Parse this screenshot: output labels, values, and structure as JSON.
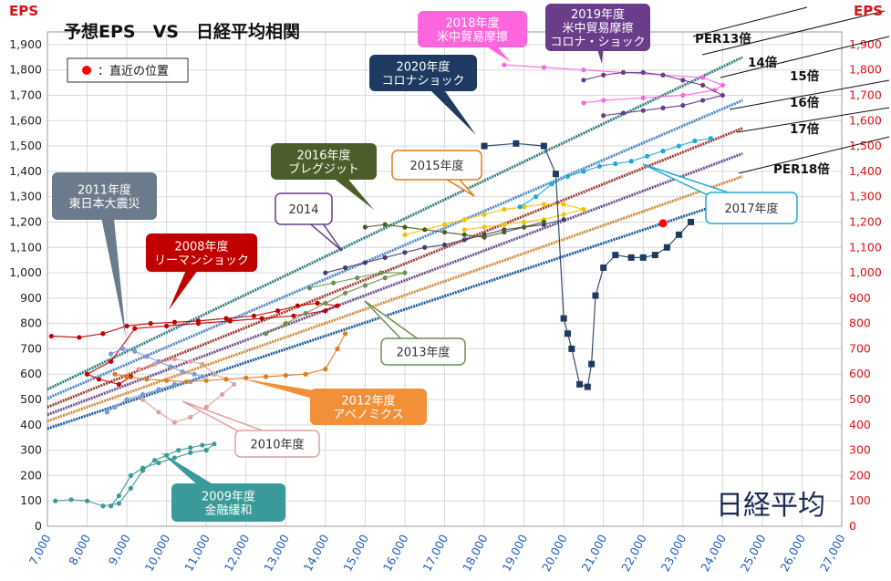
{
  "chart_data": {
    "type": "scatter",
    "title": "予想EPS　VS　日経平均相関",
    "ylabel_left": "EPS",
    "ylabel_right": "EPS",
    "xlabel": "日経平均",
    "xlim": [
      7000,
      27000
    ],
    "ylim": [
      0,
      1950
    ],
    "x_ticks": [
      "7,000",
      "8,000",
      "9,000",
      "10,000",
      "11,000",
      "12,000",
      "13,000",
      "14,000",
      "15,000",
      "16,000",
      "17,000",
      "18,000",
      "19,000",
      "20,000",
      "21,000",
      "22,000",
      "23,000",
      "24,000",
      "25,000",
      "26,000",
      "27,000"
    ],
    "y_ticks": [
      "0",
      "100",
      "200",
      "300",
      "400",
      "500",
      "600",
      "700",
      "800",
      "900",
      "1,000",
      "1,100",
      "1,200",
      "1,300",
      "1,400",
      "1,500",
      "1,600",
      "1,700",
      "1,800",
      "1,900"
    ],
    "legend": {
      "marker_color": "#ff0000",
      "label": "：直近の位置"
    },
    "current_point": {
      "x": 22500,
      "y": 1195
    },
    "per_lines": [
      {
        "label": "PER13倍",
        "ratio": 13,
        "color": "#2e7d7d"
      },
      {
        "label": "14倍",
        "ratio": 14,
        "color": "#4a86c8"
      },
      {
        "label": "15倍",
        "ratio": 15,
        "color": "#a0392e"
      },
      {
        "label": "16倍",
        "ratio": 16,
        "color": "#6b4e8a"
      },
      {
        "label": "17倍",
        "ratio": 17,
        "color": "#d08a3a"
      },
      {
        "label": "PER18倍",
        "ratio": 18,
        "color": "#1b5aa0"
      }
    ],
    "series": [
      {
        "name": "2008年度 リーマンショック",
        "color": "#c00000",
        "x": [
          7100,
          7800,
          8400,
          9000,
          9600,
          10200,
          10800,
          11500,
          12200,
          12800,
          13300,
          13800,
          14300,
          14000,
          13200,
          12400,
          11600,
          10800,
          10000,
          9200,
          8600,
          8000,
          8300,
          8800,
          9100
        ],
        "y": [
          750,
          745,
          760,
          790,
          800,
          805,
          810,
          820,
          830,
          850,
          870,
          880,
          870,
          850,
          830,
          820,
          810,
          800,
          790,
          780,
          650,
          600,
          580,
          560,
          590
        ]
      },
      {
        "name": "2009年度 金融緩和",
        "color": "#3a9a9a",
        "x": [
          7200,
          7600,
          8000,
          8400,
          8800,
          9100,
          9400,
          9700,
          10000,
          10300,
          10600,
          10900,
          11200,
          11000,
          10600,
          10200,
          9800,
          9400,
          9100,
          8800,
          8600
        ],
        "y": [
          100,
          105,
          100,
          80,
          90,
          150,
          220,
          260,
          280,
          300,
          310,
          320,
          325,
          300,
          290,
          270,
          250,
          230,
          200,
          120,
          80
        ]
      },
      {
        "name": "2010年度",
        "color": "#e0a0a0",
        "x": [
          9300,
          9700,
          10200,
          10600,
          10900,
          11200,
          11500,
          11700,
          11400,
          11000,
          10600,
          10200,
          9800,
          9400
        ],
        "y": [
          620,
          640,
          660,
          650,
          640,
          600,
          580,
          560,
          520,
          470,
          430,
          410,
          450,
          500
        ]
      },
      {
        "name": "2011年度 東日本大震災",
        "color": "#7b9bd1",
        "x": [
          8600,
          8900,
          9200,
          9500,
          9800,
          10100,
          10400,
          10700,
          10900,
          10600,
          10200,
          9800,
          9400,
          9000,
          8700,
          8500
        ],
        "y": [
          680,
          700,
          690,
          670,
          650,
          630,
          610,
          600,
          590,
          570,
          560,
          540,
          520,
          500,
          470,
          450
        ]
      },
      {
        "name": "2012年度 アベノミクス",
        "color": "#e07b1a",
        "x": [
          8700,
          9000,
          9500,
          10000,
          10500,
          11000,
          11500,
          12000,
          12500,
          13000,
          13500,
          14000,
          14300,
          14500
        ],
        "y": [
          600,
          590,
          580,
          575,
          570,
          575,
          580,
          585,
          590,
          595,
          600,
          620,
          700,
          760
        ]
      },
      {
        "name": "2013年度",
        "color": "#6f8f4f",
        "x": [
          12500,
          13000,
          13500,
          14000,
          14500,
          15000,
          15500,
          16000,
          15400,
          14800,
          14200,
          13600
        ],
        "y": [
          760,
          800,
          840,
          880,
          920,
          950,
          980,
          1000,
          1000,
          980,
          960,
          940
        ]
      },
      {
        "name": "2014",
        "color": "#4a3b6b",
        "x": [
          14000,
          14500,
          15000,
          15500,
          16000,
          16500,
          17000,
          17500,
          18000,
          18500,
          19000,
          19500,
          20000
        ],
        "y": [
          1000,
          1020,
          1040,
          1060,
          1080,
          1100,
          1110,
          1130,
          1150,
          1170,
          1180,
          1190,
          1210
        ]
      },
      {
        "name": "2015年度",
        "color": "#f2c300",
        "x": [
          16000,
          16500,
          17000,
          17500,
          18000,
          18500,
          19000,
          19500,
          20000,
          20500,
          20000,
          19500,
          19000,
          18500,
          18000,
          17500
        ],
        "y": [
          1150,
          1170,
          1190,
          1210,
          1230,
          1250,
          1260,
          1270,
          1270,
          1250,
          1230,
          1210,
          1200,
          1190,
          1180,
          1170
        ]
      },
      {
        "name": "2016年度 ブレグジット",
        "color": "#4b5e2a",
        "x": [
          15000,
          15500,
          16000,
          16500,
          17000,
          17500,
          18000,
          18500,
          19000,
          19500
        ],
        "y": [
          1180,
          1190,
          1180,
          1170,
          1160,
          1150,
          1140,
          1160,
          1180,
          1200
        ]
      },
      {
        "name": "2017年度",
        "color": "#1fa8d8",
        "x": [
          18900,
          19300,
          19700,
          20100,
          20500,
          20900,
          21300,
          21700,
          22100,
          22500,
          22900,
          23300,
          23700
        ],
        "y": [
          1260,
          1300,
          1350,
          1380,
          1400,
          1420,
          1430,
          1440,
          1460,
          1480,
          1500,
          1520,
          1530
        ]
      },
      {
        "name": "2018年度 米中貿易摩擦",
        "color": "#ff66dd",
        "x": [
          18500,
          19500,
          20500,
          21500,
          22500,
          23500,
          24000,
          23800,
          23000,
          22000,
          21000,
          20500
        ],
        "y": [
          1820,
          1810,
          1800,
          1790,
          1780,
          1770,
          1740,
          1720,
          1700,
          1690,
          1680,
          1670
        ]
      },
      {
        "name": "2019年度 米中貿易摩擦 コロナ・ショック",
        "color": "#6a3d8a",
        "x": [
          20500,
          21000,
          21500,
          22000,
          22500,
          23000,
          23500,
          24000,
          23500,
          23000,
          22500,
          22000,
          21500,
          21000
        ],
        "y": [
          1760,
          1780,
          1790,
          1790,
          1780,
          1760,
          1740,
          1700,
          1680,
          1660,
          1650,
          1640,
          1630,
          1620
        ]
      },
      {
        "name": "2020年度 コロナショック",
        "color": "#1f3a60",
        "x": [
          18000,
          18800,
          19500,
          19800,
          20000,
          20100,
          20200,
          20400,
          20600,
          20700,
          20800,
          21000,
          21300,
          21700,
          22000,
          22300,
          22600,
          22900,
          23200
        ],
        "y": [
          1500,
          1510,
          1500,
          1390,
          820,
          760,
          700,
          560,
          550,
          640,
          910,
          1020,
          1070,
          1060,
          1060,
          1070,
          1100,
          1150,
          1200
        ]
      }
    ],
    "annotations": [
      {
        "text": "2018年度\n米中貿易摩擦",
        "color": "#ff66dd",
        "text_color": "#ffffff"
      },
      {
        "text": "2019年度\n米中貿易摩擦\nコロナ・ショック",
        "color": "#6a3d8a",
        "text_color": "#ffffff"
      },
      {
        "text": "2020年度\nコロナショック",
        "color": "#1f3a60",
        "text_color": "#ffffff"
      },
      {
        "text": "2016年度\nブレグジット",
        "color": "#4b5e2a",
        "text_color": "#ffffff"
      },
      {
        "text": "2015年度",
        "color": "#ffffff",
        "border": "#e07b1a",
        "text_color": "#333333"
      },
      {
        "text": "2014",
        "color": "#ffffff",
        "border": "#6a3d8a",
        "text_color": "#333333"
      },
      {
        "text": "2011年度\n東日本大震災",
        "color": "#6b7b8c",
        "text_color": "#ffffff"
      },
      {
        "text": "2008年度\nリーマンショック",
        "color": "#c00000",
        "text_color": "#ffffff"
      },
      {
        "text": "2013年度",
        "color": "#ffffff",
        "border": "#6f8f4f",
        "text_color": "#333333"
      },
      {
        "text": "2012年度\nアベノミクス",
        "color": "#f2903a",
        "text_color": "#ffffff"
      },
      {
        "text": "2010年度",
        "color": "#ffffff",
        "border": "#e0a0a0",
        "text_color": "#333333"
      },
      {
        "text": "2009年度\n金融緩和",
        "color": "#3a9a9a",
        "text_color": "#ffffff"
      },
      {
        "text": "2017年度",
        "color": "#ffffff",
        "border": "#1fa8d8",
        "text_color": "#333333"
      }
    ]
  }
}
